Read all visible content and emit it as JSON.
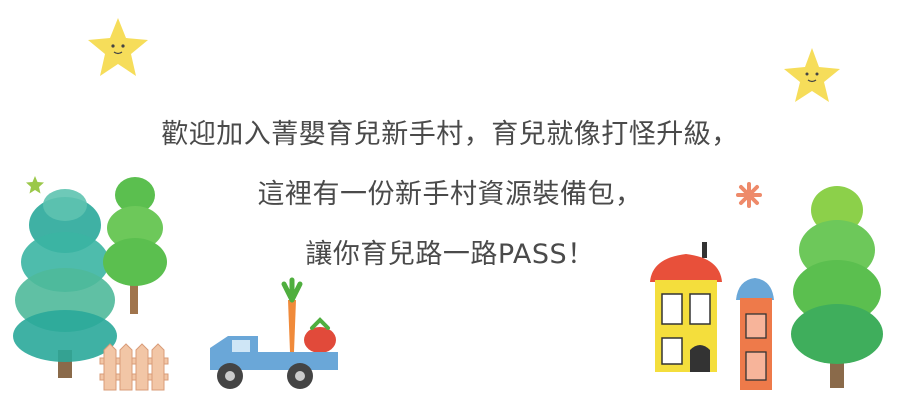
{
  "banner": {
    "line1": "歡迎加入菁嬰育兒新手村，育兒就像打怪升級，",
    "line2": "這裡有一份新手村資源裝備包，",
    "line3": "讓你育兒路一路PASS！"
  },
  "colors": {
    "text": "#4a4a4a",
    "star": "#f6dd5a",
    "tree_green": "#5bbf4f",
    "tree_teal": "#2aa89a",
    "truck_blue": "#6aa7d8",
    "house_yellow": "#f4de3c",
    "house_orange": "#ee7a4a",
    "roof_red": "#e8503a"
  },
  "icons": [
    "star-icon",
    "tree-icon",
    "fence-icon",
    "truck-icon",
    "carrot-icon",
    "tomato-icon",
    "house-icon",
    "flower-icon"
  ]
}
